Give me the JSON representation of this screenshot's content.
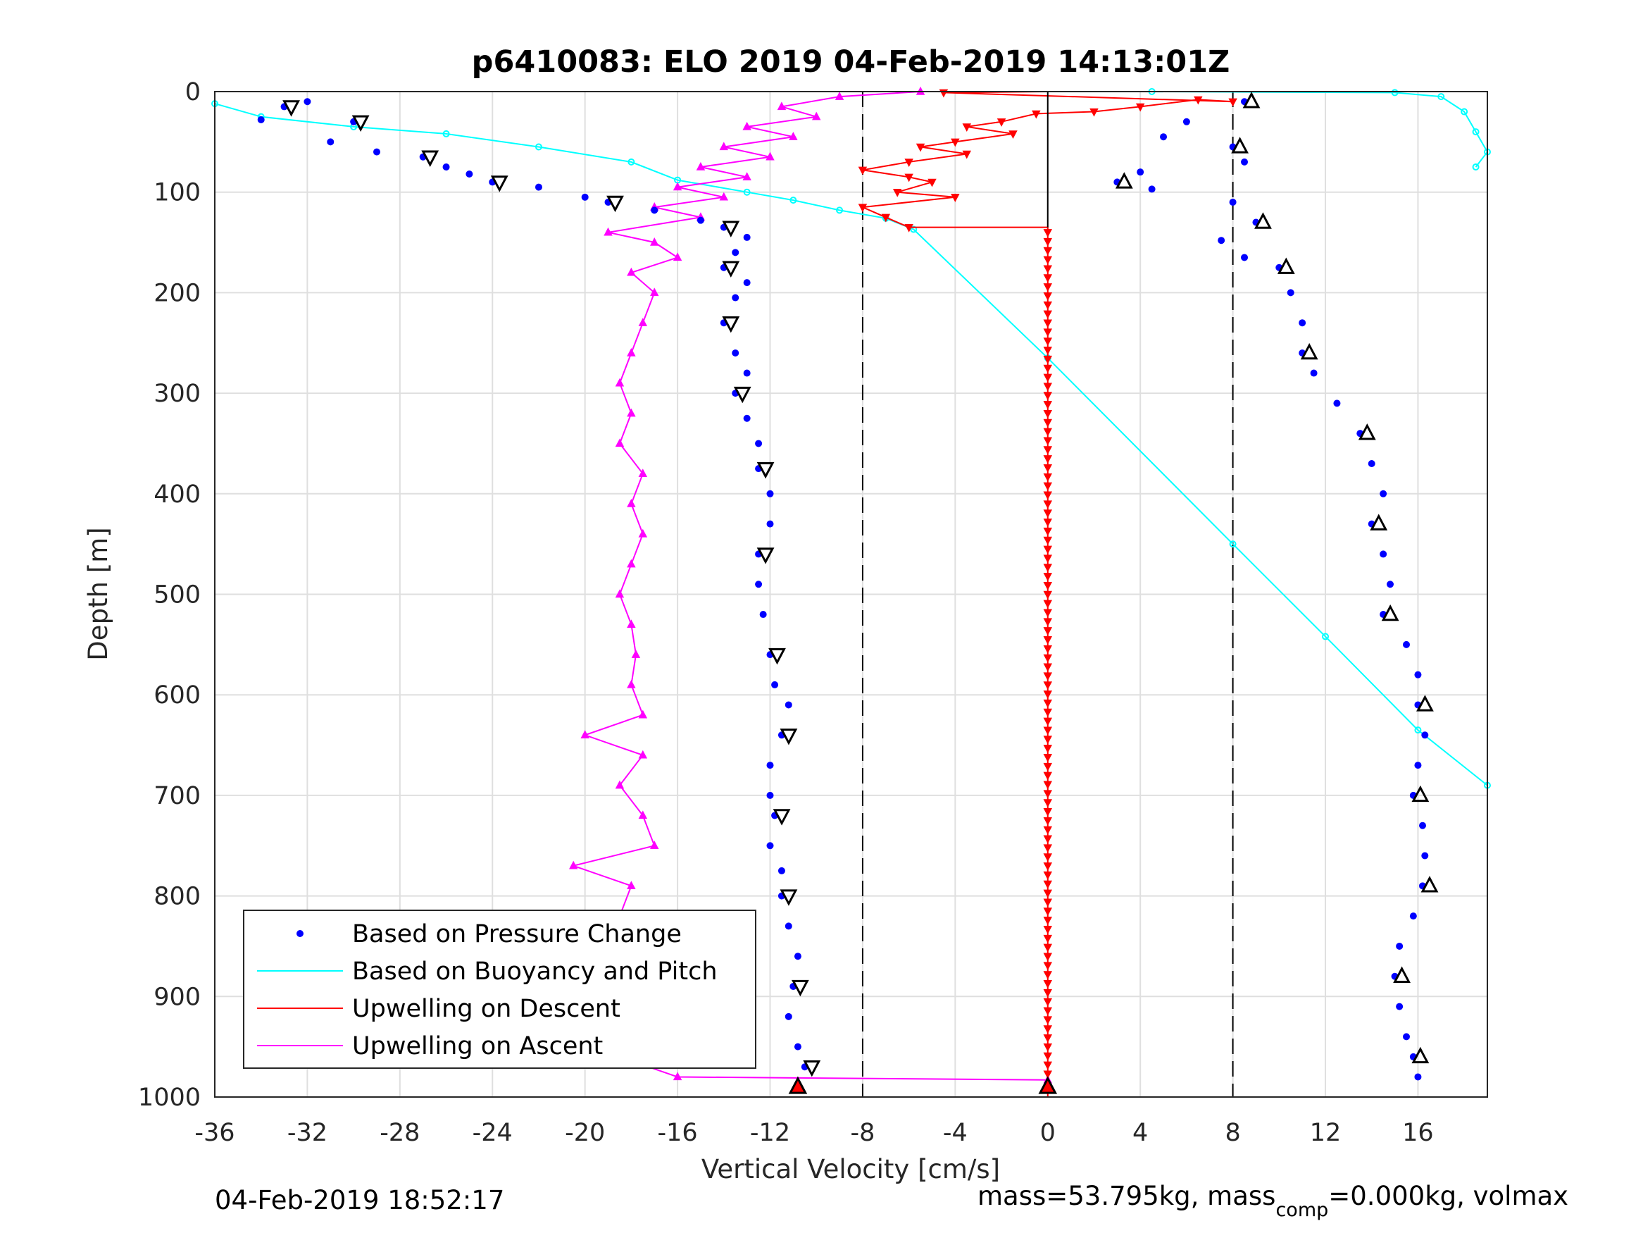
{
  "chart_data": {
    "type": "scatter",
    "title": "p6410083: ELO 2019 04-Feb-2019 14:13:01Z",
    "xlabel": "Vertical Velocity [cm/s]",
    "ylabel": "Depth [m]",
    "xlim": [
      -36,
      19
    ],
    "ylim": [
      0,
      1000
    ],
    "y_reversed": true,
    "grid": true,
    "legend_placement": "bottom-left",
    "xticks": [
      -36,
      -32,
      -28,
      -24,
      -20,
      -16,
      -12,
      -8,
      -4,
      0,
      4,
      8,
      12,
      16
    ],
    "yticks": [
      0,
      100,
      200,
      300,
      400,
      500,
      600,
      700,
      800,
      900,
      1000
    ],
    "threshold_lines_x": [
      -8,
      8
    ],
    "colors": {
      "pressure": "#0000ff",
      "buoyancy": "#00ffff",
      "descent": "#ff0000",
      "ascent": "#ff00ff"
    },
    "legend": [
      {
        "name": "Based on Pressure Change",
        "style": "dots",
        "color": "#0000ff"
      },
      {
        "name": "Based on Buoyancy and Pitch",
        "style": "line",
        "color": "#00ffff"
      },
      {
        "name": "Upwelling on Descent",
        "style": "line",
        "color": "#ff0000"
      },
      {
        "name": "Upwelling on Ascent",
        "style": "line",
        "color": "#ff00ff"
      }
    ],
    "series": [
      {
        "name": "Based on Pressure Change",
        "branch": "descent",
        "points": [
          [
            -33,
            15
          ],
          [
            -32,
            10
          ],
          [
            -34,
            28
          ],
          [
            -30,
            30
          ],
          [
            -31,
            50
          ],
          [
            -29,
            60
          ],
          [
            -27,
            65
          ],
          [
            -26,
            75
          ],
          [
            -25,
            82
          ],
          [
            -24,
            90
          ],
          [
            -22,
            95
          ],
          [
            -20,
            105
          ],
          [
            -19,
            110
          ],
          [
            -17,
            118
          ],
          [
            -15,
            128
          ],
          [
            -14,
            135
          ],
          [
            -13,
            145
          ],
          [
            -13.5,
            160
          ],
          [
            -14,
            175
          ],
          [
            -13,
            190
          ],
          [
            -13.5,
            205
          ],
          [
            -14,
            230
          ],
          [
            -13.5,
            260
          ],
          [
            -13,
            280
          ],
          [
            -13.5,
            300
          ],
          [
            -13,
            325
          ],
          [
            -12.5,
            350
          ],
          [
            -12.5,
            375
          ],
          [
            -12,
            400
          ],
          [
            -12,
            430
          ],
          [
            -12.5,
            460
          ],
          [
            -12.5,
            490
          ],
          [
            -12.3,
            520
          ],
          [
            -12,
            560
          ],
          [
            -11.8,
            590
          ],
          [
            -11.2,
            610
          ],
          [
            -11.5,
            640
          ],
          [
            -12,
            670
          ],
          [
            -12,
            700
          ],
          [
            -11.8,
            720
          ],
          [
            -12,
            750
          ],
          [
            -11.5,
            775
          ],
          [
            -11.5,
            800
          ],
          [
            -11.2,
            830
          ],
          [
            -10.8,
            860
          ],
          [
            -11,
            890
          ],
          [
            -11.2,
            920
          ],
          [
            -10.8,
            950
          ],
          [
            -10.5,
            970
          ],
          [
            -10.8,
            990
          ]
        ]
      },
      {
        "name": "Based on Pressure Change",
        "branch": "ascent",
        "points": [
          [
            8.5,
            10
          ],
          [
            6,
            30
          ],
          [
            5,
            45
          ],
          [
            8,
            55
          ],
          [
            8.5,
            70
          ],
          [
            4,
            80
          ],
          [
            3,
            90
          ],
          [
            4.5,
            97
          ],
          [
            8,
            110
          ],
          [
            9,
            130
          ],
          [
            7.5,
            148
          ],
          [
            8.5,
            165
          ],
          [
            10,
            175
          ],
          [
            10.5,
            200
          ],
          [
            11,
            230
          ],
          [
            11,
            260
          ],
          [
            11.5,
            280
          ],
          [
            12.5,
            310
          ],
          [
            13.5,
            340
          ],
          [
            14,
            370
          ],
          [
            14.5,
            400
          ],
          [
            14,
            430
          ],
          [
            14.5,
            460
          ],
          [
            14.8,
            490
          ],
          [
            14.5,
            520
          ],
          [
            15.5,
            550
          ],
          [
            16,
            580
          ],
          [
            16,
            610
          ],
          [
            16.3,
            640
          ],
          [
            16,
            670
          ],
          [
            15.8,
            700
          ],
          [
            16.2,
            730
          ],
          [
            16.3,
            760
          ],
          [
            16.2,
            790
          ],
          [
            15.8,
            820
          ],
          [
            15.2,
            850
          ],
          [
            15,
            880
          ],
          [
            15.2,
            910
          ],
          [
            15.5,
            940
          ],
          [
            15.8,
            960
          ],
          [
            16,
            980
          ]
        ]
      },
      {
        "name": "Based on Buoyancy and Pitch",
        "branch": "descent",
        "points": [
          [
            -36,
            12
          ],
          [
            -34,
            25
          ],
          [
            -30,
            35
          ],
          [
            -26,
            42
          ],
          [
            -22,
            55
          ],
          [
            -18,
            70
          ],
          [
            -16,
            88
          ],
          [
            -13,
            100
          ],
          [
            -11,
            108
          ],
          [
            -9,
            118
          ],
          [
            -7,
            126
          ],
          [
            -5.8,
            137
          ],
          [
            0,
            265
          ],
          [
            8,
            450
          ],
          [
            12,
            542
          ],
          [
            16,
            635
          ],
          [
            19,
            690
          ]
        ]
      },
      {
        "name": "Based on Buoyancy and Pitch",
        "branch": "ascent",
        "points": [
          [
            4.5,
            0
          ],
          [
            15,
            1
          ],
          [
            17,
            5
          ],
          [
            18,
            20
          ],
          [
            18.5,
            40
          ],
          [
            19,
            60
          ],
          [
            18.5,
            75
          ]
        ]
      },
      {
        "name": "Upwelling on Descent",
        "points": [
          [
            0,
            0
          ],
          [
            -4.5,
            1
          ],
          [
            8,
            10
          ],
          [
            6.5,
            8
          ],
          [
            4,
            15
          ],
          [
            2,
            20
          ],
          [
            -0.5,
            22
          ],
          [
            -2,
            30
          ],
          [
            -3.5,
            35
          ],
          [
            -1.5,
            42
          ],
          [
            -4,
            50
          ],
          [
            -5.5,
            55
          ],
          [
            -3.5,
            62
          ],
          [
            -6,
            70
          ],
          [
            -8,
            78
          ],
          [
            -6,
            85
          ],
          [
            -5,
            90
          ],
          [
            -6.5,
            100
          ],
          [
            -4,
            105
          ],
          [
            -8,
            115
          ],
          [
            -7,
            125
          ],
          [
            -6,
            135
          ],
          [
            0,
            135
          ],
          [
            0,
            1000
          ]
        ]
      },
      {
        "name": "Upwelling on Ascent",
        "points": [
          [
            -5.5,
            0
          ],
          [
            -9,
            5
          ],
          [
            -11.5,
            15
          ],
          [
            -10,
            25
          ],
          [
            -13,
            35
          ],
          [
            -11,
            45
          ],
          [
            -14,
            55
          ],
          [
            -12,
            65
          ],
          [
            -15,
            75
          ],
          [
            -13,
            85
          ],
          [
            -16,
            95
          ],
          [
            -14,
            105
          ],
          [
            -17,
            115
          ],
          [
            -15,
            125
          ],
          [
            -19,
            140
          ],
          [
            -17,
            150
          ],
          [
            -16,
            165
          ],
          [
            -18,
            180
          ],
          [
            -17,
            200
          ],
          [
            -17.5,
            230
          ],
          [
            -18,
            260
          ],
          [
            -18.5,
            290
          ],
          [
            -18,
            320
          ],
          [
            -18.5,
            350
          ],
          [
            -17.5,
            380
          ],
          [
            -18,
            410
          ],
          [
            -17.5,
            440
          ],
          [
            -18,
            470
          ],
          [
            -18.5,
            500
          ],
          [
            -18,
            530
          ],
          [
            -17.8,
            560
          ],
          [
            -18,
            590
          ],
          [
            -17.5,
            620
          ],
          [
            -20,
            640
          ],
          [
            -17.5,
            660
          ],
          [
            -18.5,
            690
          ],
          [
            -17.5,
            720
          ],
          [
            -17,
            750
          ],
          [
            -20.5,
            770
          ],
          [
            -18,
            790
          ],
          [
            -18.5,
            820
          ],
          [
            -18,
            850
          ],
          [
            -18,
            880
          ],
          [
            -18.3,
            910
          ],
          [
            -17,
            940
          ],
          [
            -18.5,
            960
          ],
          [
            -16,
            980
          ],
          [
            0,
            983
          ]
        ]
      }
    ]
  },
  "footer": {
    "left_timestamp": "04-Feb-2019 18:52:17",
    "right_text_main": "mass=53.795kg, mass",
    "right_text_sub": "comp",
    "right_text_tail": "=0.000kg, volmax"
  }
}
